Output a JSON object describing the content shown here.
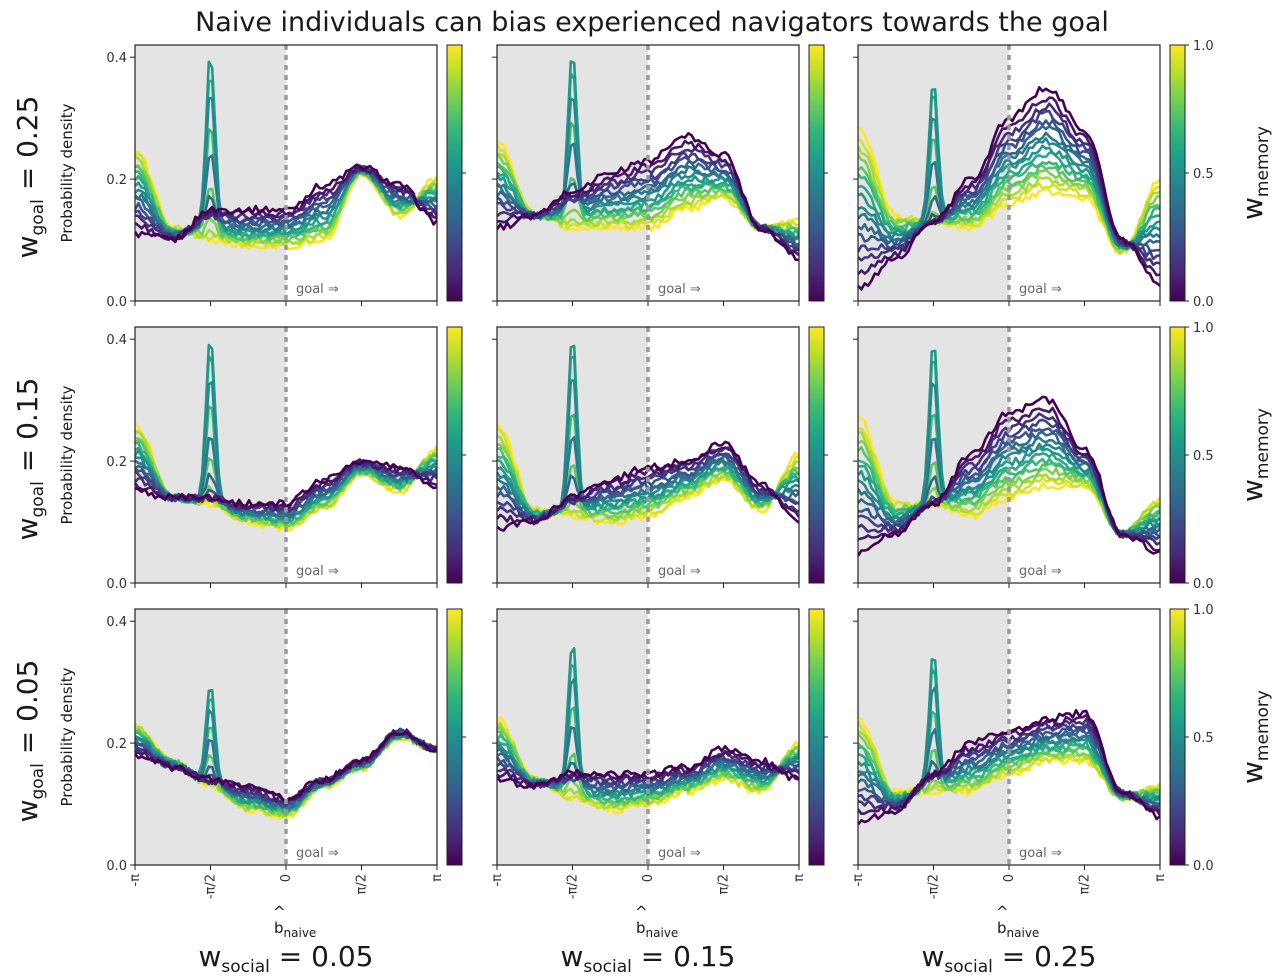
{
  "title": "Naive individuals can bias experienced navigators towards the goal",
  "annotation": "goal ⇒",
  "ylabel": "Probability density",
  "xlabel_base": "b",
  "xlabel_sub": "naive",
  "row_labels": [
    {
      "base": "w",
      "sub": "goal",
      "rest": "= 0.25"
    },
    {
      "base": "w",
      "sub": "goal",
      "rest": "= 0.15"
    },
    {
      "base": "w",
      "sub": "goal",
      "rest": "= 0.05"
    }
  ],
  "col_labels": [
    {
      "base": "w",
      "sub": "social",
      "rest": "= 0.05"
    },
    {
      "base": "w",
      "sub": "social",
      "rest": "= 0.15"
    },
    {
      "base": "w",
      "sub": "social",
      "rest": "= 0.25"
    }
  ],
  "colorbar": {
    "label_base": "w",
    "label_sub": "memory",
    "ticks": [
      "0.0",
      "0.5",
      "1.0"
    ],
    "colormap": "viridis",
    "colors": [
      "#440154",
      "#482878",
      "#3e4989",
      "#31688e",
      "#26828e",
      "#1f9e89",
      "#35b779",
      "#6ece58",
      "#b5de2b",
      "#fde725"
    ]
  },
  "chart_data": {
    "type": "line",
    "layout": "3x3 grid",
    "xlabel": "b̂naive",
    "ylabel": "Probability density",
    "x_tick_labels": [
      "-π",
      "-π/2",
      "0",
      "π/2",
      "π"
    ],
    "y_tick_labels": [
      "0.0",
      "0.2",
      "0.4"
    ],
    "ylim": [
      0,
      0.42
    ],
    "xlim": [
      "-π",
      "π"
    ],
    "shaded_region": [
      "-π",
      "0"
    ],
    "vline": "0",
    "color_variable": "w_memory (0.0 to 1.0)",
    "x_points": [
      "-π",
      "-3π/4",
      "-π/2",
      "-π/4",
      "0",
      "π/4",
      "π/2",
      "3π/4",
      "π"
    ],
    "panels": [
      {
        "row_w_goal": 0.25,
        "col_w_social": 0.05,
        "low_memory_curve": [
          0.11,
          0.1,
          0.15,
          0.15,
          0.15,
          0.19,
          0.22,
          0.19,
          0.13
        ],
        "high_memory_curve": [
          0.25,
          0.12,
          0.1,
          0.09,
          0.09,
          0.1,
          0.21,
          0.14,
          0.2
        ],
        "peak_at_minus_pi_half": 0.41
      },
      {
        "row_w_goal": 0.25,
        "col_w_social": 0.15,
        "low_memory_curve": [
          0.12,
          0.14,
          0.18,
          0.21,
          0.23,
          0.27,
          0.24,
          0.12,
          0.07
        ],
        "high_memory_curve": [
          0.26,
          0.14,
          0.12,
          0.12,
          0.12,
          0.15,
          0.17,
          0.12,
          0.13
        ],
        "peak_at_minus_pi_half": 0.41
      },
      {
        "row_w_goal": 0.25,
        "col_w_social": 0.25,
        "low_memory_curve": [
          0.02,
          0.07,
          0.13,
          0.2,
          0.3,
          0.35,
          0.28,
          0.1,
          0.03
        ],
        "high_memory_curve": [
          0.28,
          0.14,
          0.13,
          0.12,
          0.16,
          0.18,
          0.17,
          0.08,
          0.2
        ],
        "peak_at_minus_pi_half": 0.37
      },
      {
        "row_w_goal": 0.15,
        "col_w_social": 0.05,
        "low_memory_curve": [
          0.15,
          0.14,
          0.14,
          0.13,
          0.13,
          0.17,
          0.2,
          0.19,
          0.16
        ],
        "high_memory_curve": [
          0.26,
          0.14,
          0.13,
          0.1,
          0.09,
          0.12,
          0.18,
          0.15,
          0.22
        ],
        "peak_at_minus_pi_half": 0.41
      },
      {
        "row_w_goal": 0.15,
        "col_w_social": 0.15,
        "low_memory_curve": [
          0.09,
          0.1,
          0.14,
          0.17,
          0.19,
          0.2,
          0.23,
          0.16,
          0.1
        ],
        "high_memory_curve": [
          0.26,
          0.12,
          0.11,
          0.1,
          0.11,
          0.14,
          0.17,
          0.12,
          0.21
        ],
        "peak_at_minus_pi_half": 0.41
      },
      {
        "row_w_goal": 0.15,
        "col_w_social": 0.25,
        "low_memory_curve": [
          0.05,
          0.08,
          0.13,
          0.21,
          0.28,
          0.3,
          0.22,
          0.08,
          0.05
        ],
        "high_memory_curve": [
          0.27,
          0.13,
          0.13,
          0.11,
          0.14,
          0.16,
          0.16,
          0.08,
          0.14
        ],
        "peak_at_minus_pi_half": 0.4
      },
      {
        "row_w_goal": 0.05,
        "col_w_social": 0.05,
        "low_memory_curve": [
          0.18,
          0.16,
          0.14,
          0.13,
          0.11,
          0.14,
          0.17,
          0.22,
          0.19
        ],
        "high_memory_curve": [
          0.23,
          0.17,
          0.13,
          0.09,
          0.08,
          0.13,
          0.16,
          0.21,
          0.19
        ],
        "peak_at_minus_pi_half": 0.3
      },
      {
        "row_w_goal": 0.05,
        "col_w_social": 0.15,
        "low_memory_curve": [
          0.14,
          0.13,
          0.15,
          0.15,
          0.15,
          0.16,
          0.19,
          0.17,
          0.14
        ],
        "high_memory_curve": [
          0.24,
          0.14,
          0.11,
          0.09,
          0.1,
          0.12,
          0.14,
          0.12,
          0.2
        ],
        "peak_at_minus_pi_half": 0.37
      },
      {
        "row_w_goal": 0.05,
        "col_w_social": 0.25,
        "low_memory_curve": [
          0.07,
          0.09,
          0.15,
          0.2,
          0.22,
          0.24,
          0.25,
          0.12,
          0.08
        ],
        "high_memory_curve": [
          0.24,
          0.12,
          0.12,
          0.12,
          0.15,
          0.17,
          0.17,
          0.11,
          0.13
        ],
        "peak_at_minus_pi_half": 0.35
      }
    ]
  }
}
